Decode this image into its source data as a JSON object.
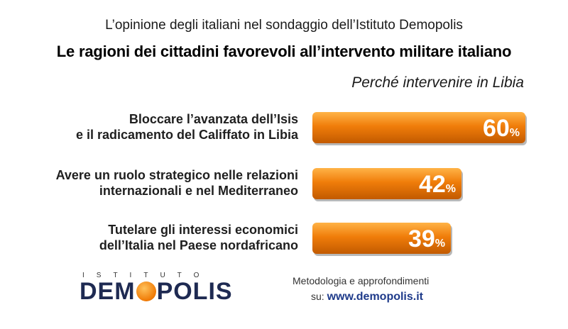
{
  "header": {
    "subtitle": "L’opinione degli italiani nel sondaggio dell’Istituto Demopolis",
    "title": "Le ragioni dei cittadini favorevoli all’intervento militare italiano"
  },
  "chart_data": {
    "type": "bar",
    "orientation": "horizontal",
    "title": "Perché intervenire in Libia",
    "categories": [
      [
        "Bloccare l’avanzata dell’Isis",
        "e il radicamento del Califfato in Libia"
      ],
      [
        "Avere un ruolo strategico nelle relazioni",
        "internazionali e nel Mediterraneo"
      ],
      [
        "Tutelare gli interessi economici",
        "dell’Italia nel Paese nordafricano"
      ]
    ],
    "values": [
      60,
      42,
      39
    ],
    "unit": "%",
    "bar_color": "#f07d0a",
    "grid": false
  },
  "footer": {
    "logo_top": "ISTITUTO",
    "logo_main_a": "DEM",
    "logo_main_b": "POLIS",
    "method_line1": "Metodologia e approfondimenti",
    "method_prefix": "su:",
    "method_url": "www.demopolis.it"
  }
}
